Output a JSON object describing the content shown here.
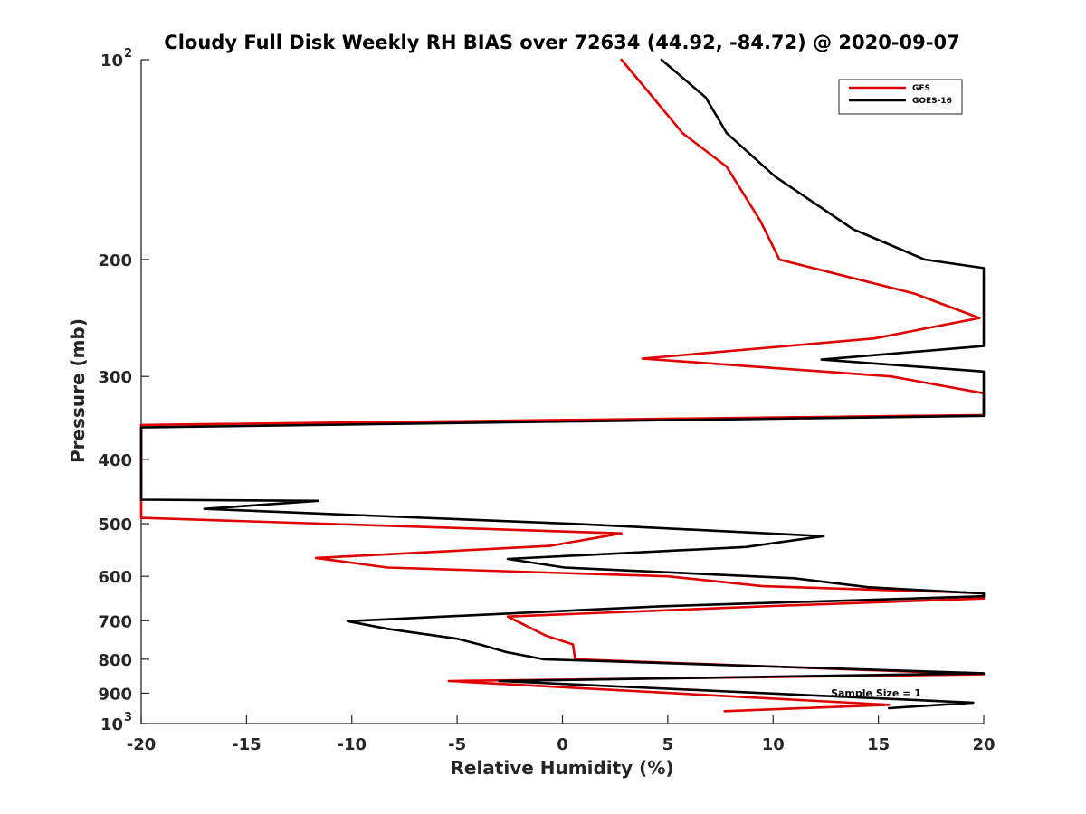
{
  "chart_data": {
    "type": "line",
    "title": "Cloudy Full Disk Weekly RH BIAS over 72634 (44.92, -84.72) @ 2020-09-07",
    "xlabel": "Relative Humidity (%)",
    "ylabel": "Pressure (mb)",
    "xlim": [
      -20,
      20
    ],
    "ylim": [
      100,
      1000
    ],
    "y_scale": "log",
    "y_reversed": true,
    "grid": false,
    "legend_position": "top-right",
    "x_ticks": [
      "-20",
      "-15",
      "-10",
      "-5",
      "0",
      "5",
      "10",
      "15",
      "20"
    ],
    "y_ticks": [
      {
        "value": 100,
        "base": "10",
        "exp": "2",
        "label": ""
      },
      {
        "value": 200,
        "label": "200"
      },
      {
        "value": 300,
        "label": "300"
      },
      {
        "value": 400,
        "label": "400"
      },
      {
        "value": 500,
        "label": "500"
      },
      {
        "value": 600,
        "label": "600"
      },
      {
        "value": 700,
        "label": "700"
      },
      {
        "value": 800,
        "label": "800"
      },
      {
        "value": 900,
        "label": "900"
      },
      {
        "value": 1000,
        "base": "10",
        "exp": "3",
        "label": ""
      }
    ],
    "annotation": "Sample Size = 1",
    "series": [
      {
        "name": "GFS",
        "color": "#e00000",
        "points": [
          [
            2.8,
            100
          ],
          [
            4.2,
            113
          ],
          [
            5.7,
            129
          ],
          [
            7.8,
            145
          ],
          [
            9.4,
            175
          ],
          [
            10.3,
            200
          ],
          [
            16.7,
            225
          ],
          [
            19.8,
            245
          ],
          [
            14.8,
            263
          ],
          [
            3.8,
            282
          ],
          [
            15.6,
            300
          ],
          [
            20,
            318
          ],
          [
            20,
            343
          ],
          [
            -20,
            355
          ],
          [
            -20,
            490
          ],
          [
            2.8,
            517
          ],
          [
            -0.6,
            540
          ],
          [
            -11.7,
            563
          ],
          [
            -8.3,
            582
          ],
          [
            5.0,
            600
          ],
          [
            9.5,
            621
          ],
          [
            20,
            636
          ],
          [
            20,
            648
          ],
          [
            10.0,
            665
          ],
          [
            -2.6,
            690
          ],
          [
            -0.8,
            737
          ],
          [
            0.5,
            760
          ],
          [
            0.6,
            800
          ],
          [
            20,
            843
          ],
          [
            -5.4,
            863
          ],
          [
            15.5,
            937
          ],
          [
            7.7,
            958
          ]
        ]
      },
      {
        "name": "GOES-16",
        "color": "#000000",
        "points": [
          [
            4.7,
            100
          ],
          [
            6.8,
            114
          ],
          [
            7.8,
            129
          ],
          [
            10.1,
            150
          ],
          [
            13.8,
            180
          ],
          [
            17.2,
            200
          ],
          [
            20,
            206
          ],
          [
            20,
            270
          ],
          [
            12.3,
            283
          ],
          [
            20,
            295
          ],
          [
            20,
            344
          ],
          [
            -20,
            358
          ],
          [
            -20,
            460
          ],
          [
            -11.6,
            462
          ],
          [
            -17.0,
            475
          ],
          [
            1.0,
            501
          ],
          [
            12.4,
            522
          ],
          [
            8.7,
            542
          ],
          [
            -2.6,
            565
          ],
          [
            0.1,
            582
          ],
          [
            11.0,
            604
          ],
          [
            14.5,
            623
          ],
          [
            20,
            637
          ],
          [
            20,
            643
          ],
          [
            4.6,
            666
          ],
          [
            -10.2,
            701
          ],
          [
            -8.3,
            720
          ],
          [
            -5.0,
            745
          ],
          [
            -3.8,
            762
          ],
          [
            -2.7,
            780
          ],
          [
            -0.9,
            800
          ],
          [
            20,
            840
          ],
          [
            -3.0,
            863
          ],
          [
            19.5,
            930
          ],
          [
            15.5,
            948
          ]
        ]
      }
    ]
  }
}
